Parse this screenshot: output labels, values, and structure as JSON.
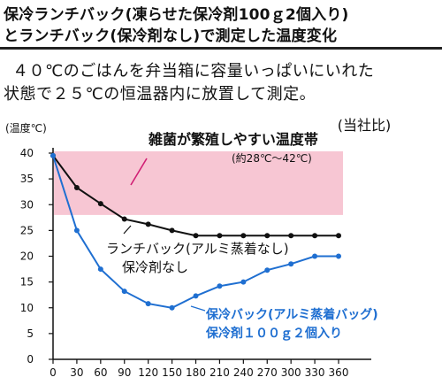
{
  "header": {
    "title_line1": "保冷ランチバック(凍らせた保冷剤100ｇ2個入り)",
    "title_line2": "とランチバック(保冷剤なし)で測定した温度変化",
    "description_line1": "４０℃のごはんを弁当箱に容量いっぱいにいれた",
    "description_line2": "状態で２５℃の恒温器内に放置して測定。"
  },
  "chart_data": {
    "type": "line",
    "ylabel": "(温度℃)",
    "corner_note": "(当社比)",
    "xlim": [
      0,
      360
    ],
    "ylim": [
      0,
      40
    ],
    "x_ticks": [
      0,
      30,
      60,
      90,
      120,
      150,
      180,
      210,
      240,
      270,
      300,
      330,
      360
    ],
    "y_ticks": [
      0,
      5,
      10,
      15,
      20,
      25,
      30,
      35,
      40
    ],
    "grid": false,
    "band": {
      "label_line1": "雑菌が繁殖しやすい温度帯",
      "label_line2": "(約28℃～42℃)",
      "y_range": [
        28,
        42
      ],
      "color": "#f7c6d3"
    },
    "series": [
      {
        "name": "ランチバック(アルミ蒸着なし) 保冷剤なし",
        "label_line1": "ランチバック(アルミ蒸着なし)",
        "label_line2": "保冷剤なし",
        "color": "#111111",
        "x": [
          0,
          30,
          60,
          90,
          120,
          150,
          180,
          210,
          240,
          270,
          300,
          330,
          360
        ],
        "values": [
          39.5,
          33.3,
          30.2,
          27.2,
          26.2,
          25.0,
          24.0,
          24.0,
          24.0,
          24.0,
          24.0,
          24.0,
          24.0
        ]
      },
      {
        "name": "保冷バック(アルミ蒸着バッグ) 保冷剤１００ｇ２個入り",
        "label_line1": "保冷バック(アルミ蒸着バッグ)",
        "label_line2": "保冷剤１００ｇ２個入り",
        "color": "#1f6fd1",
        "x": [
          0,
          30,
          60,
          90,
          120,
          150,
          180,
          210,
          240,
          270,
          300,
          330,
          360
        ],
        "values": [
          39.5,
          25.0,
          17.5,
          13.2,
          10.8,
          10.0,
          12.3,
          14.2,
          15.0,
          17.3,
          18.5,
          20.0,
          20.0
        ]
      }
    ]
  }
}
